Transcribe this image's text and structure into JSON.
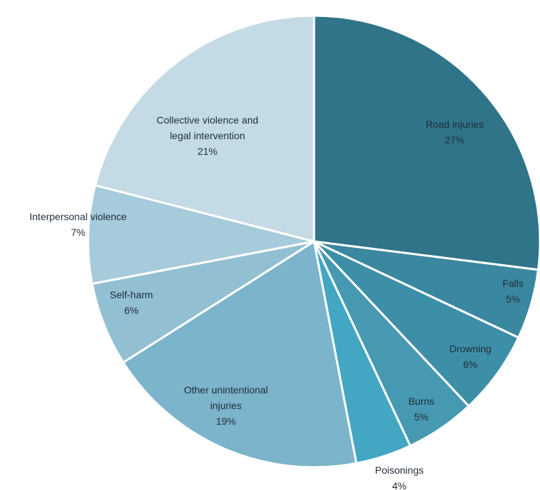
{
  "chart_data": {
    "type": "pie",
    "title": "",
    "start_angle_deg": 0,
    "direction": "clockwise",
    "slices": [
      {
        "label": "Road injuries",
        "value": 27,
        "value_label": "27%",
        "color": "#2f7489"
      },
      {
        "label": "Falls",
        "value": 5,
        "value_label": "5%",
        "color": "#3a889f"
      },
      {
        "label": "Drowning",
        "value": 6,
        "value_label": "6%",
        "color": "#3d8fa8"
      },
      {
        "label": "Burns",
        "value": 5,
        "value_label": "5%",
        "color": "#4699b1"
      },
      {
        "label": "Poisonings",
        "value": 4,
        "value_label": "4%",
        "color": "#43a6c2"
      },
      {
        "label": "Other unintentional injuries",
        "value": 19,
        "value_label": "19%",
        "color": "#7bb4cb"
      },
      {
        "label": "Self-harm",
        "value": 6,
        "value_label": "6%",
        "color": "#92c0d2"
      },
      {
        "label": "Interpersonal violence",
        "value": 7,
        "value_label": "7%",
        "color": "#a6cbdb"
      },
      {
        "label": "Collective violence and legal intervention",
        "value": 21,
        "value_label": "21%",
        "color": "#c4dbe5"
      }
    ]
  }
}
